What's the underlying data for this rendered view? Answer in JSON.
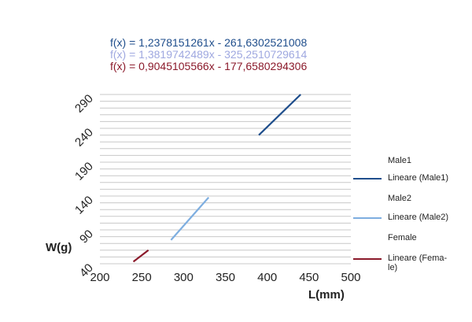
{
  "chart_data": {
    "type": "line",
    "title": "",
    "xlabel": "L(mm)",
    "ylabel": "W(g)",
    "xlim": [
      200,
      500
    ],
    "ylim": [
      40,
      290
    ],
    "x_ticks": [
      "200",
      "250",
      "300",
      "350",
      "400",
      "450",
      "500"
    ],
    "y_ticks": [
      "40",
      "90",
      "140",
      "190",
      "240",
      "290"
    ],
    "grid": "horizontal",
    "legend_position": "right",
    "trendline_equations": [
      {
        "text": "f(x) = 1,2378151261x - 261,6302521008",
        "color": "#1f4e8c"
      },
      {
        "text": "f(x) = 1,3819742489x - 325,2510729614",
        "color": "#9fa8e0"
      },
      {
        "text": "f(x) = 0,9045105566x - 177,6580294306",
        "color": "#8b1a2b"
      }
    ],
    "series": [
      {
        "name": "Lineare (Male1)",
        "color": "#1f4e8c",
        "x": [
          390,
          440
        ],
        "y": [
          230,
          290
        ]
      },
      {
        "name": "Lineare (Male2)",
        "color": "#7eaee0",
        "x": [
          285,
          330
        ],
        "y": [
          75,
          138
        ]
      },
      {
        "name": "Lineare (Fema-le)",
        "color": "#8b1a2b",
        "x": [
          240,
          258
        ],
        "y": [
          43,
          60
        ]
      }
    ],
    "legend": [
      {
        "label": "Male1",
        "swatch": null
      },
      {
        "label": "Lineare (Male1)",
        "swatch": "#1f4e8c"
      },
      {
        "label": "Male2",
        "swatch": null
      },
      {
        "label": "Lineare (Male2)",
        "swatch": "#7eaee0"
      },
      {
        "label": "Female",
        "swatch": null
      },
      {
        "label": "Lineare (Fema-\nle)",
        "swatch": "#8b1a2b"
      }
    ]
  }
}
